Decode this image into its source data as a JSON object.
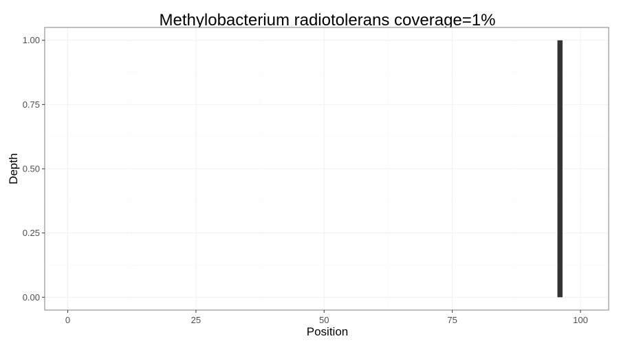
{
  "chart_data": {
    "type": "bar",
    "title": "Methylobacterium radiotolerans coverage=1%",
    "xlabel": "Position",
    "ylabel": "Depth",
    "xlim": [
      -4.5,
      105.5
    ],
    "ylim": [
      -0.05,
      1.05
    ],
    "x_ticks": [
      0,
      25,
      50,
      75,
      100
    ],
    "x_tick_labels": [
      "0",
      "25",
      "50",
      "75",
      "100"
    ],
    "y_ticks": [
      0,
      0.25,
      0.5,
      0.75,
      1
    ],
    "y_tick_labels": [
      "0.00",
      "0.25",
      "0.50",
      "0.75",
      "1.00"
    ],
    "grid": true,
    "bar_color": "#333333",
    "x": [
      96
    ],
    "values": [
      1
    ]
  }
}
